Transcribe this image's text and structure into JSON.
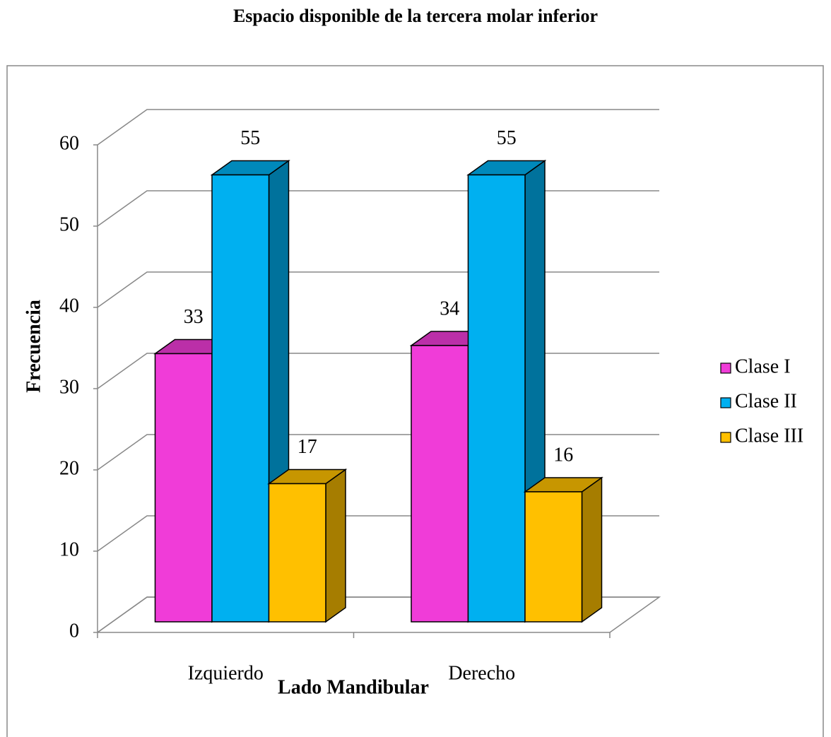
{
  "chart_data": {
    "type": "bar3d",
    "title": "Espacio disponible de la tercera molar inferior",
    "x_label": "Lado Mandibular",
    "y_label": "Frecuencia",
    "categories": [
      "Izquierdo",
      "Derecho"
    ],
    "series": [
      {
        "name": "Clase I",
        "color": "#f03cd8",
        "values": [
          33,
          34
        ]
      },
      {
        "name": "Clase II",
        "color": "#00b0f0",
        "values": [
          55,
          55
        ]
      },
      {
        "name": "Clase III",
        "color": "#ffc000",
        "values": [
          17,
          16
        ]
      }
    ],
    "ylim": [
      0,
      60
    ],
    "yticks": [
      0,
      10,
      20,
      30,
      40,
      50,
      60
    ],
    "grid": true,
    "legend": "right"
  }
}
